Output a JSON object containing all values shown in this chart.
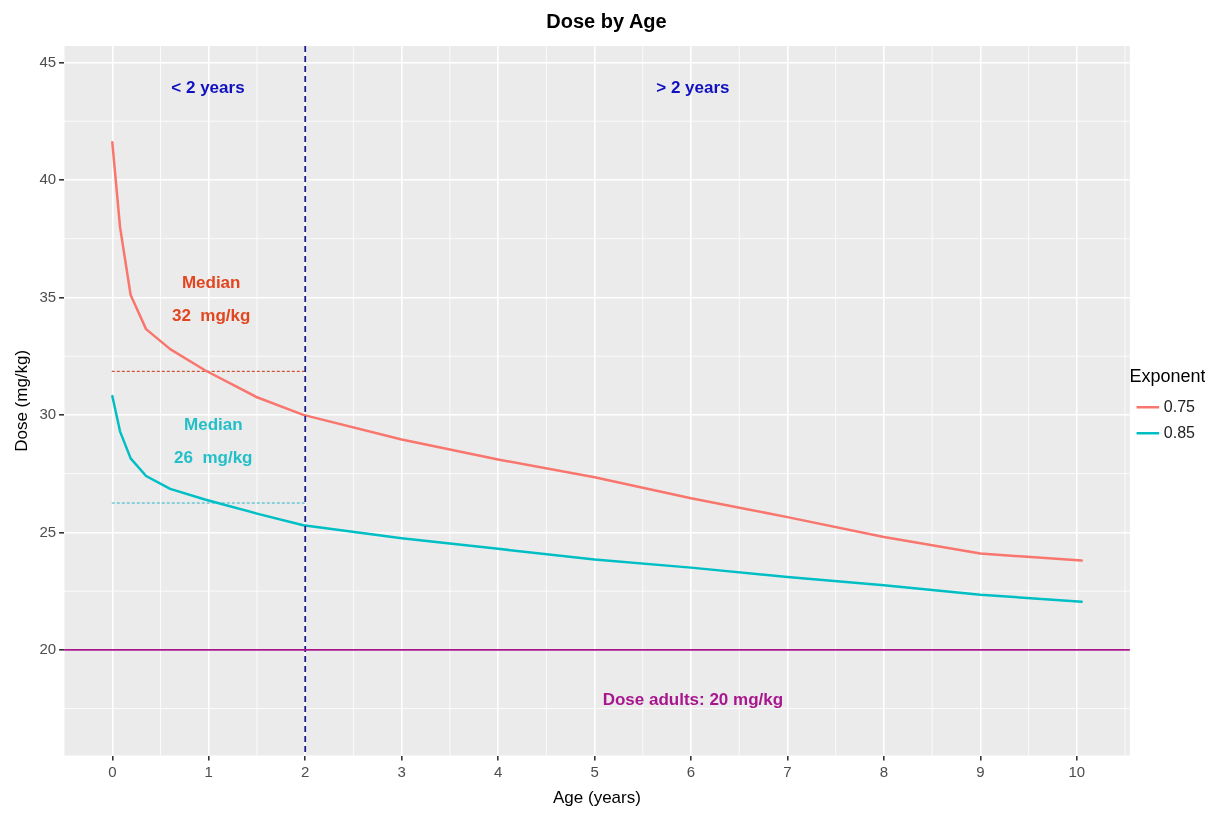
{
  "chart_data": {
    "type": "line",
    "title": "Dose by Age",
    "xlabel": "Age (years)",
    "ylabel": "Dose (mg/kg)",
    "legend_title": "Exponent",
    "legend": "right",
    "grid": true,
    "line_style": "solid",
    "marker": "none",
    "xlim": [
      -0.5,
      10.55
    ],
    "xticks": [
      0,
      1,
      2,
      3,
      4,
      5,
      6,
      7,
      8,
      9,
      10
    ],
    "ylim": [
      15.5,
      45.7
    ],
    "yticks": [
      20,
      25,
      30,
      35,
      40,
      45
    ],
    "series": [
      {
        "name": "0.75",
        "color": "#f8766d",
        "x": [
          0,
          0.08,
          0.19,
          0.35,
          0.6,
          0.96,
          1.5,
          1.98,
          3,
          4,
          5,
          6,
          7,
          8,
          9,
          10.05
        ],
        "values": [
          41.6,
          38.0,
          35.1,
          33.65,
          32.8,
          31.9,
          30.75,
          30.0,
          28.95,
          28.1,
          27.35,
          26.45,
          25.65,
          24.8,
          24.1,
          23.8
        ]
      },
      {
        "name": "0.85",
        "color": "#00bfc4",
        "x": [
          0,
          0.08,
          0.19,
          0.35,
          0.6,
          0.96,
          1.5,
          1.98,
          3,
          4,
          5,
          6,
          7,
          8,
          9,
          10.05
        ],
        "values": [
          30.8,
          29.3,
          28.15,
          27.4,
          26.85,
          26.4,
          25.8,
          25.3,
          24.75,
          24.3,
          23.85,
          23.5,
          23.1,
          22.75,
          22.35,
          22.05
        ]
      },
      {
        "type": "line",
        "line_style": "dotted",
        "color": "#d2553a",
        "x": [
          0,
          2
        ],
        "values": [
          31.85,
          31.85
        ]
      },
      {
        "type": "line",
        "line_style": "dotted",
        "color": "#25b5c5",
        "x": [
          0,
          2
        ],
        "values": [
          26.25,
          26.25
        ]
      }
    ],
    "ref_lines": [
      {
        "axis": "x",
        "value": 2,
        "color": "#1c1c8a",
        "line_style": "dashed"
      },
      {
        "axis": "y",
        "value": 20,
        "color": "#a8168e",
        "line_style": "solid",
        "label": "Dose adults: 20 mg/kg"
      }
    ],
    "annotations": [
      "< 2 years",
      "> 2 years",
      "Median",
      "32  mg/kg",
      "Median",
      "26  mg/kg"
    ]
  }
}
